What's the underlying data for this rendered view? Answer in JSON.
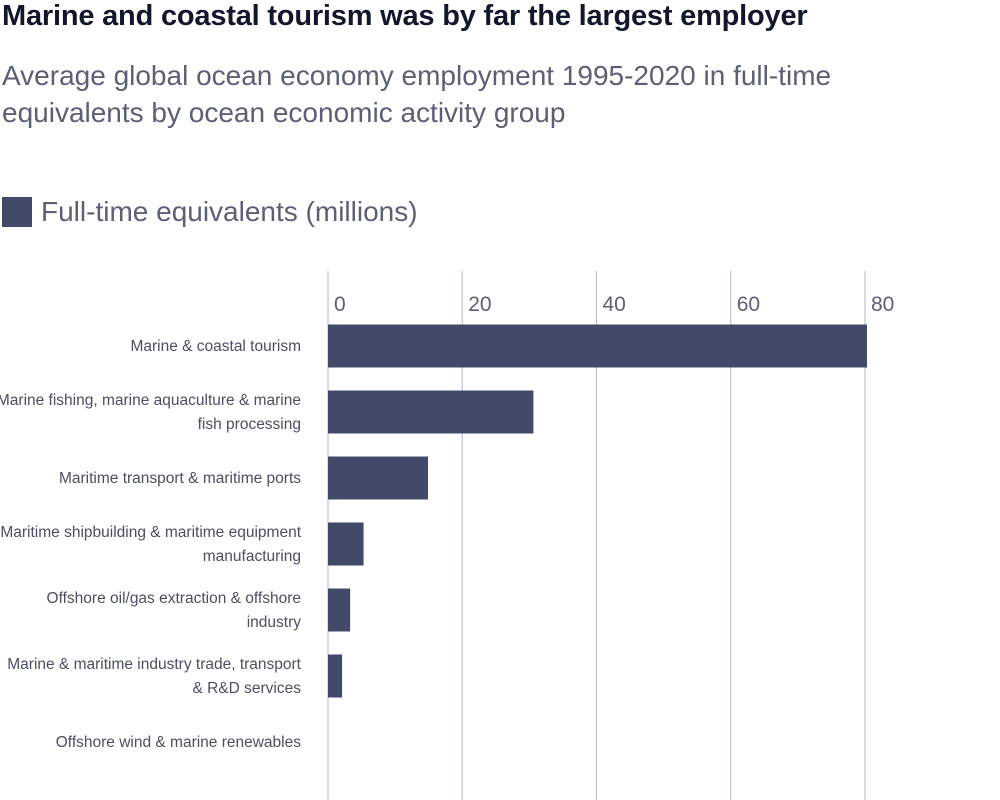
{
  "chart_data": {
    "type": "bar",
    "orientation": "horizontal",
    "title": "Marine and coastal tourism was by far the largest employer",
    "subtitle": "Average global ocean economy employment 1995-2020 in full-time equivalents by ocean economic activity group",
    "legend": [
      {
        "label": "Full-time equivalents (millions)",
        "color": "#434a69"
      }
    ],
    "legend_position": "top-left",
    "categories": [
      [
        "Marine & coastal tourism"
      ],
      [
        "Marine fishing, marine aquaculture & marine",
        "fish processing"
      ],
      [
        "Maritime transport & maritime ports"
      ],
      [
        "Maritime shipbuilding & maritime equipment",
        "manufacturing"
      ],
      [
        "Offshore oil/gas extraction & offshore",
        "industry"
      ],
      [
        "Marine & maritime industry trade, transport",
        "& R&D services"
      ],
      [
        "Offshore wind & marine renewables"
      ]
    ],
    "values": [
      80.3,
      30.6,
      14.9,
      5.3,
      3.3,
      2.1,
      0.0
    ],
    "x_ticks": [
      "0",
      "20",
      "40",
      "60",
      "80"
    ],
    "x_tick_values": [
      0,
      20,
      40,
      60,
      80
    ],
    "xlim": [
      0,
      80
    ],
    "grid": true,
    "bar_color": "#434a69",
    "grid_color": "#b9c3ce"
  }
}
